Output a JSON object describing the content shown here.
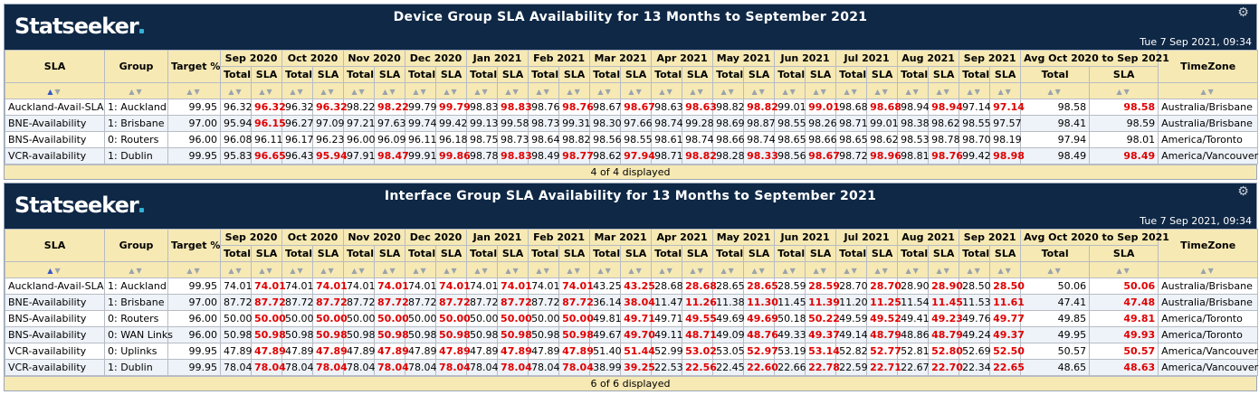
{
  "brand": "Statseeker",
  "panels": [
    {
      "title": "Device Group SLA Availability for 13 Months to September 2021",
      "timestamp": "Tue 7 Sep 2021, 09:34",
      "footer": "4 of 4 displayed",
      "headers": {
        "sla": "SLA",
        "group": "Group",
        "target": "Target %",
        "months": [
          "Sep 2020",
          "Oct 2020",
          "Nov 2020",
          "Dec 2020",
          "Jan 2021",
          "Feb 2021",
          "Mar 2021",
          "Apr 2021",
          "May 2021",
          "Jun 2021",
          "Jul 2021",
          "Aug 2021",
          "Sep 2021"
        ],
        "avg": "Avg Oct 2020 to Sep 2021",
        "tz": "TimeZone",
        "total": "Total",
        "slacol": "SLA"
      },
      "rows": [
        {
          "sla": "Auckland-Avail-SLA",
          "group": "1: Auckland",
          "target": "99.95",
          "cells": [
            "96.32",
            "96.32",
            "96.32",
            "96.32",
            "98.22",
            "98.22",
            "99.79",
            "99.79",
            "98.83",
            "98.83",
            "98.76",
            "98.76",
            "98.67",
            "98.67",
            "98.63",
            "98.63",
            "98.82",
            "98.82",
            "99.01",
            "99.01",
            "98.68",
            "98.68",
            "98.94",
            "98.94",
            "97.14",
            "97.14"
          ],
          "red": [
            1,
            3,
            5,
            7,
            9,
            11,
            13,
            15,
            17,
            19,
            21,
            23,
            25
          ],
          "avg_total": "98.58",
          "avg_sla": "98.58",
          "avg_red": true,
          "tz": "Australia/Brisbane"
        },
        {
          "sla": "BNE-Availability",
          "group": "1: Brisbane",
          "target": "97.00",
          "cells": [
            "95.94",
            "96.15",
            "96.27",
            "97.09",
            "97.21",
            "97.63",
            "99.74",
            "99.42",
            "99.13",
            "99.58",
            "98.73",
            "99.31",
            "98.30",
            "97.66",
            "98.74",
            "99.28",
            "98.69",
            "98.87",
            "98.55",
            "98.26",
            "98.71",
            "99.01",
            "98.38",
            "98.62",
            "98.55",
            "97.57"
          ],
          "red": [
            1
          ],
          "avg_total": "98.41",
          "avg_sla": "98.59",
          "avg_red": false,
          "tz": "Australia/Brisbane"
        },
        {
          "sla": "BNS-Availability",
          "group": "0: Routers",
          "target": "96.00",
          "cells": [
            "96.08",
            "96.11",
            "96.17",
            "96.23",
            "96.00",
            "96.09",
            "96.11",
            "96.18",
            "98.75",
            "98.73",
            "98.64",
            "98.82",
            "98.56",
            "98.55",
            "98.61",
            "98.74",
            "98.66",
            "98.74",
            "98.65",
            "98.66",
            "98.65",
            "98.62",
            "98.53",
            "98.78",
            "98.70",
            "98.19"
          ],
          "red": [],
          "avg_total": "97.94",
          "avg_sla": "98.01",
          "avg_red": false,
          "tz": "America/Toronto"
        },
        {
          "sla": "VCR-availability",
          "group": "1: Dublin",
          "target": "99.95",
          "cells": [
            "95.83",
            "96.65",
            "96.43",
            "95.94",
            "97.91",
            "98.47",
            "99.91",
            "99.86",
            "98.78",
            "98.83",
            "98.49",
            "98.77",
            "98.62",
            "97.94",
            "98.71",
            "98.82",
            "98.28",
            "98.33",
            "98.56",
            "98.67",
            "98.72",
            "98.96",
            "98.81",
            "98.76",
            "99.42",
            "98.98"
          ],
          "red": [
            1,
            3,
            5,
            7,
            9,
            11,
            13,
            15,
            17,
            19,
            21,
            23,
            25
          ],
          "avg_total": "98.49",
          "avg_sla": "98.49",
          "avg_red": true,
          "tz": "America/Vancouver"
        }
      ]
    },
    {
      "title": "Interface Group SLA Availability for 13 Months to September 2021",
      "timestamp": "Tue 7 Sep 2021, 09:34",
      "footer": "6 of 6 displayed",
      "headers": {
        "sla": "SLA",
        "group": "Group",
        "target": "Target %",
        "months": [
          "Sep 2020",
          "Oct 2020",
          "Nov 2020",
          "Dec 2020",
          "Jan 2021",
          "Feb 2021",
          "Mar 2021",
          "Apr 2021",
          "May 2021",
          "Jun 2021",
          "Jul 2021",
          "Aug 2021",
          "Sep 2021"
        ],
        "avg": "Avg Oct 2020 to Sep 2021",
        "tz": "TimeZone",
        "total": "Total",
        "slacol": "SLA"
      },
      "rows": [
        {
          "sla": "Auckland-Avail-SLA",
          "group": "1: Auckland",
          "target": "99.95",
          "cells": [
            "74.01",
            "74.01",
            "74.01",
            "74.01",
            "74.01",
            "74.01",
            "74.01",
            "74.01",
            "74.01",
            "74.01",
            "74.01",
            "74.01",
            "43.25",
            "43.25",
            "28.68",
            "28.68",
            "28.65",
            "28.65",
            "28.59",
            "28.59",
            "28.70",
            "28.70",
            "28.90",
            "28.90",
            "28.50",
            "28.50"
          ],
          "red": [
            1,
            3,
            5,
            7,
            9,
            11,
            13,
            15,
            17,
            19,
            21,
            23,
            25
          ],
          "avg_total": "50.06",
          "avg_sla": "50.06",
          "avg_red": true,
          "tz": "Australia/Brisbane"
        },
        {
          "sla": "BNE-Availability",
          "group": "1: Brisbane",
          "target": "97.00",
          "cells": [
            "87.72",
            "87.72",
            "87.72",
            "87.72",
            "87.72",
            "87.72",
            "87.72",
            "87.72",
            "87.72",
            "87.72",
            "87.72",
            "87.72",
            "36.14",
            "38.04",
            "11.47",
            "11.26",
            "11.38",
            "11.30",
            "11.45",
            "11.39",
            "11.20",
            "11.25",
            "11.54",
            "11.45",
            "11.53",
            "11.61"
          ],
          "red": [
            1,
            3,
            5,
            7,
            9,
            11,
            13,
            15,
            17,
            19,
            21,
            23,
            25
          ],
          "avg_total": "47.41",
          "avg_sla": "47.48",
          "avg_red": true,
          "tz": "Australia/Brisbane"
        },
        {
          "sla": "BNS-Availability",
          "group": "0: Routers",
          "target": "96.00",
          "cells": [
            "50.00",
            "50.00",
            "50.00",
            "50.00",
            "50.00",
            "50.00",
            "50.00",
            "50.00",
            "50.00",
            "50.00",
            "50.00",
            "50.00",
            "49.81",
            "49.71",
            "49.71",
            "49.55",
            "49.69",
            "49.69",
            "50.18",
            "50.22",
            "49.59",
            "49.52",
            "49.41",
            "49.23",
            "49.76",
            "49.77"
          ],
          "red": [
            1,
            3,
            5,
            7,
            9,
            11,
            13,
            15,
            17,
            19,
            21,
            23,
            25
          ],
          "avg_total": "49.85",
          "avg_sla": "49.81",
          "avg_red": true,
          "tz": "America/Toronto"
        },
        {
          "sla": "BNS-Availability",
          "group": "0: WAN Links",
          "target": "96.00",
          "cells": [
            "50.98",
            "50.98",
            "50.98",
            "50.98",
            "50.98",
            "50.98",
            "50.98",
            "50.98",
            "50.98",
            "50.98",
            "50.98",
            "50.98",
            "49.67",
            "49.70",
            "49.11",
            "48.71",
            "49.09",
            "48.76",
            "49.33",
            "49.37",
            "49.14",
            "48.79",
            "48.86",
            "48.79",
            "49.24",
            "49.37"
          ],
          "red": [
            1,
            3,
            5,
            7,
            9,
            11,
            13,
            15,
            17,
            19,
            21,
            23,
            25
          ],
          "avg_total": "49.95",
          "avg_sla": "49.93",
          "avg_red": true,
          "tz": "America/Toronto"
        },
        {
          "sla": "VCR-availability",
          "group": "0: Uplinks",
          "target": "99.95",
          "cells": [
            "47.89",
            "47.89",
            "47.89",
            "47.89",
            "47.89",
            "47.89",
            "47.89",
            "47.89",
            "47.89",
            "47.89",
            "47.89",
            "47.89",
            "51.40",
            "51.44",
            "52.99",
            "53.02",
            "53.05",
            "52.97",
            "53.19",
            "53.14",
            "52.82",
            "52.77",
            "52.81",
            "52.80",
            "52.69",
            "52.50"
          ],
          "red": [
            1,
            3,
            5,
            7,
            9,
            11,
            13,
            15,
            17,
            19,
            21,
            23,
            25
          ],
          "avg_total": "50.57",
          "avg_sla": "50.57",
          "avg_red": true,
          "tz": "America/Vancouver"
        },
        {
          "sla": "VCR-availability",
          "group": "1: Dublin",
          "target": "99.95",
          "cells": [
            "78.04",
            "78.04",
            "78.04",
            "78.04",
            "78.04",
            "78.04",
            "78.04",
            "78.04",
            "78.04",
            "78.04",
            "78.04",
            "78.04",
            "38.99",
            "39.25",
            "22.53",
            "22.56",
            "22.45",
            "22.60",
            "22.66",
            "22.78",
            "22.59",
            "22.71",
            "22.67",
            "22.70",
            "22.34",
            "22.65"
          ],
          "red": [
            1,
            3,
            5,
            7,
            9,
            11,
            13,
            15,
            17,
            19,
            21,
            23,
            25
          ],
          "avg_total": "48.65",
          "avg_sla": "48.63",
          "avg_red": true,
          "tz": "America/Vancouver"
        }
      ]
    }
  ]
}
